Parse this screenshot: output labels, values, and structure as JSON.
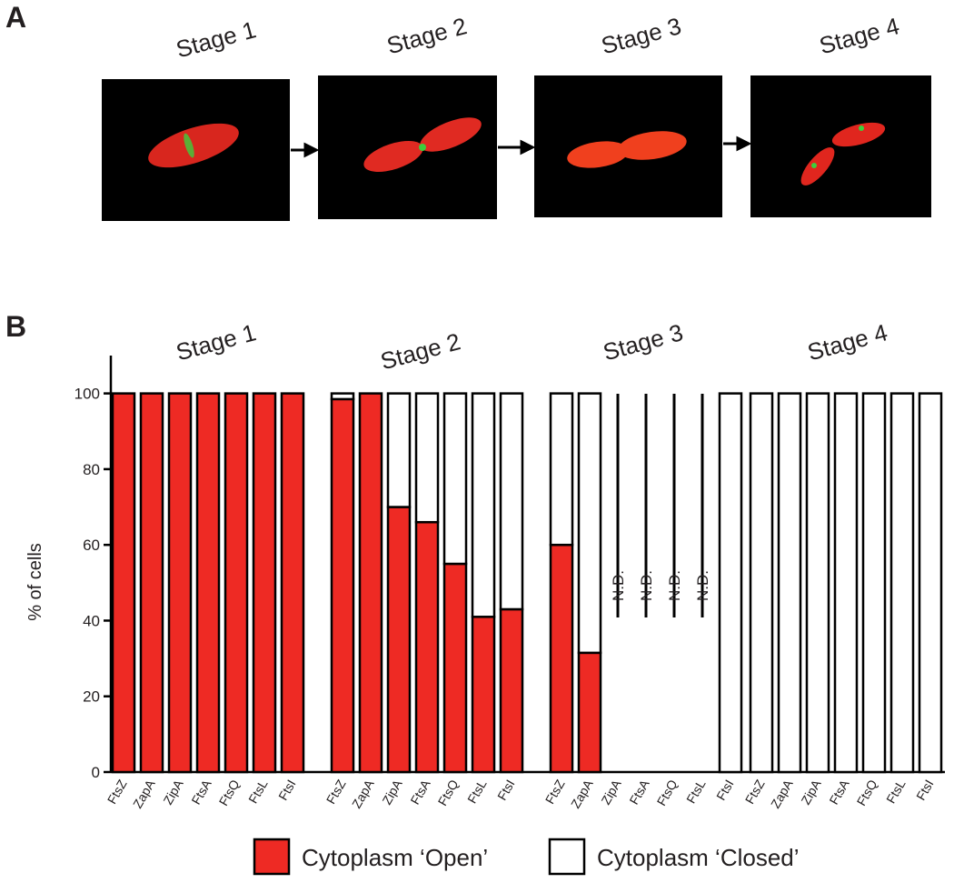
{
  "panel_a": {
    "label": "A",
    "stages": [
      "Stage 1",
      "Stage 2",
      "Stage 3",
      "Stage 4"
    ]
  },
  "chart_data": {
    "type": "stacked-bar",
    "panel_label": "B",
    "ylabel": "% of cells",
    "groups": [
      "Stage 1",
      "Stage 2",
      "Stage 3",
      "Stage 4"
    ],
    "categories": [
      "FtsZ",
      "ZapA",
      "ZipA",
      "FtsA",
      "FtsQ",
      "FtsL",
      "FtsI",
      "FtsZ",
      "ZapA",
      "ZipA",
      "FtsA",
      "FtsQ",
      "FtsL",
      "FtsI",
      "FtsZ",
      "ZapA",
      "ZipA",
      "FtsA",
      "FtsQ",
      "FtsL",
      "FtsI",
      "FtsZ",
      "ZapA",
      "ZipA",
      "FtsA",
      "FtsQ",
      "FtsL",
      "FtsI"
    ],
    "series": [
      {
        "name": "Cytoplasm ‘Open’",
        "color": "#ee2a24",
        "values": [
          100,
          100,
          100,
          100,
          100,
          100,
          100,
          98.5,
          100,
          70,
          66,
          55,
          41,
          43,
          60,
          31.5,
          null,
          null,
          null,
          null,
          0,
          0,
          0,
          0,
          0,
          0,
          0,
          0
        ]
      },
      {
        "name": "Cytoplasm ‘Closed’",
        "color": "#ffffff",
        "values": [
          0,
          0,
          0,
          0,
          0,
          0,
          0,
          1.5,
          0,
          30,
          34,
          45,
          59,
          57,
          40,
          68.5,
          null,
          null,
          null,
          null,
          100,
          100,
          100,
          100,
          100,
          100,
          100,
          100
        ],
        "value_labels": [
          null,
          null,
          null,
          null,
          null,
          null,
          null,
          null,
          null,
          null,
          null,
          null,
          null,
          null,
          null,
          null,
          "N.D.",
          "N.D.",
          "N.D.",
          "N.D.",
          null,
          null,
          null,
          null,
          null,
          null,
          null,
          null
        ]
      }
    ],
    "ylim": [
      0,
      110
    ],
    "yticks": [
      0,
      20,
      40,
      60,
      80,
      100
    ]
  }
}
